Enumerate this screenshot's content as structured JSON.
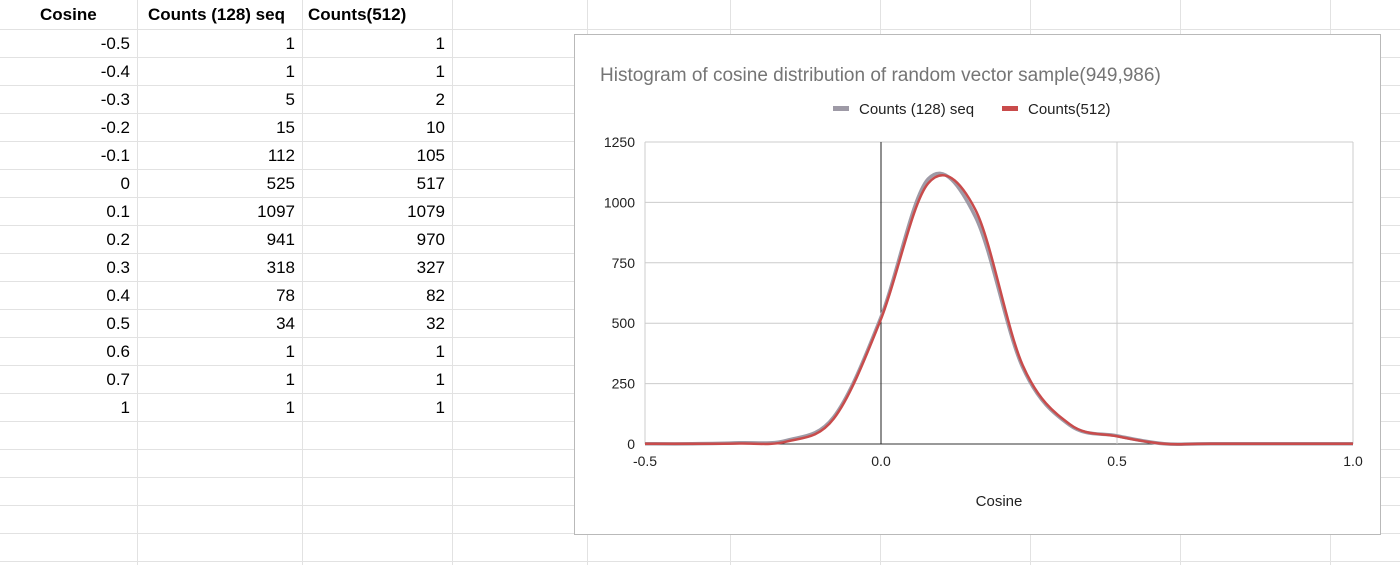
{
  "table": {
    "headers": [
      "Cosine",
      "Counts (128) seq",
      "Counts(512)"
    ],
    "rows": [
      [
        "-0.5",
        "1",
        "1"
      ],
      [
        "-0.4",
        "1",
        "1"
      ],
      [
        "-0.3",
        "5",
        "2"
      ],
      [
        "-0.2",
        "15",
        "10"
      ],
      [
        "-0.1",
        "112",
        "105"
      ],
      [
        "0",
        "525",
        "517"
      ],
      [
        "0.1",
        "1097",
        "1079"
      ],
      [
        "0.2",
        "941",
        "970"
      ],
      [
        "0.3",
        "318",
        "327"
      ],
      [
        "0.4",
        "78",
        "82"
      ],
      [
        "0.5",
        "34",
        "32"
      ],
      [
        "0.6",
        "1",
        "1"
      ],
      [
        "0.7",
        "1",
        "1"
      ],
      [
        "1",
        "1",
        "1"
      ]
    ]
  },
  "chart_data": {
    "type": "line",
    "title": "Histogram of cosine distribution of random vector sample(949,986)",
    "xlabel": "Cosine",
    "ylabel": "",
    "xlim": [
      -0.5,
      1.0
    ],
    "ylim": [
      0,
      1250
    ],
    "xticks": [
      "-0.5",
      "0.0",
      "0.5",
      "1.0"
    ],
    "yticks": [
      "0",
      "250",
      "500",
      "750",
      "1000",
      "1250"
    ],
    "grid": true,
    "legend_position": "top",
    "x": [
      -0.5,
      -0.4,
      -0.3,
      -0.2,
      -0.1,
      0,
      0.1,
      0.2,
      0.3,
      0.4,
      0.5,
      0.6,
      0.7,
      1
    ],
    "series": [
      {
        "name": "Counts (128) seq",
        "color": "#9e9aa6",
        "values": [
          1,
          1,
          5,
          15,
          112,
          525,
          1097,
          941,
          318,
          78,
          34,
          1,
          1,
          1
        ]
      },
      {
        "name": "Counts(512)",
        "color": "#c94b4b",
        "values": [
          1,
          1,
          2,
          10,
          105,
          517,
          1079,
          970,
          327,
          82,
          32,
          1,
          1,
          1
        ]
      }
    ]
  }
}
